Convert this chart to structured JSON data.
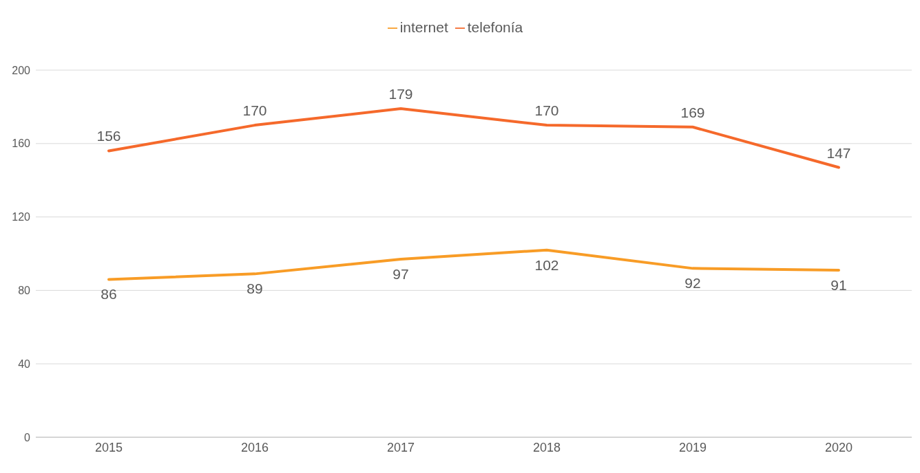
{
  "chart_data": {
    "type": "line",
    "categories": [
      "2015",
      "2016",
      "2017",
      "2018",
      "2019",
      "2020"
    ],
    "series": [
      {
        "name": "internet",
        "color": "#f89c26",
        "values": [
          86,
          89,
          97,
          102,
          92,
          91
        ]
      },
      {
        "name": "telefonía",
        "color": "#f5692b",
        "values": [
          156,
          170,
          179,
          170,
          169,
          147
        ]
      }
    ],
    "ylim": [
      0,
      200
    ],
    "yticks": [
      0,
      40,
      80,
      120,
      160,
      200
    ],
    "grid": "y",
    "legend": "top",
    "marker": "none",
    "line_style": "solid",
    "data_labels": true
  }
}
